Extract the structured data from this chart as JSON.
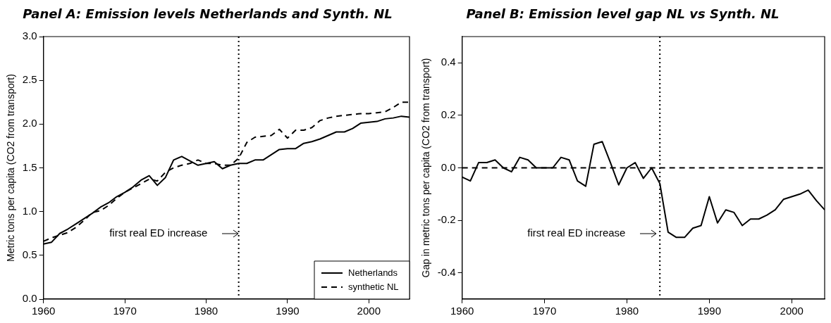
{
  "chart_data": [
    {
      "type": "line",
      "title": "Panel A: Emission levels Netherlands and Synth. NL",
      "ylabel": "Metric tons per capita (CO2 from transport)",
      "x": [
        1960,
        1961,
        1962,
        1963,
        1964,
        1965,
        1966,
        1967,
        1968,
        1969,
        1970,
        1971,
        1972,
        1973,
        1974,
        1975,
        1976,
        1977,
        1978,
        1979,
        1980,
        1981,
        1982,
        1983,
        1984,
        1985,
        1986,
        1987,
        1988,
        1989,
        1990,
        1991,
        1992,
        1993,
        1994,
        1995,
        1996,
        1997,
        1998,
        1999,
        2000,
        2001,
        2002,
        2003,
        2004,
        2005
      ],
      "series": [
        {
          "name": "Netherlands",
          "color": "#000000",
          "line_style": "solid",
          "values": [
            0.63,
            0.65,
            0.75,
            0.8,
            0.86,
            0.92,
            0.98,
            1.05,
            1.1,
            1.17,
            1.22,
            1.28,
            1.36,
            1.41,
            1.3,
            1.39,
            1.59,
            1.63,
            1.58,
            1.53,
            1.55,
            1.57,
            1.49,
            1.53,
            1.55,
            1.55,
            1.59,
            1.59,
            1.65,
            1.71,
            1.72,
            1.72,
            1.78,
            1.8,
            1.83,
            1.87,
            1.91,
            1.91,
            1.95,
            2.01,
            2.02,
            2.03,
            2.06,
            2.07,
            2.09,
            2.08
          ]
        },
        {
          "name": "synthetic NL",
          "color": "#000000",
          "line_style": "dashed",
          "values": [
            0.66,
            0.7,
            0.73,
            0.76,
            0.82,
            0.9,
            0.99,
            1.01,
            1.07,
            1.15,
            1.22,
            1.27,
            1.32,
            1.37,
            1.35,
            1.45,
            1.5,
            1.53,
            1.55,
            1.59,
            1.55,
            1.55,
            1.53,
            1.53,
            1.61,
            1.79,
            1.85,
            1.86,
            1.87,
            1.94,
            1.84,
            1.93,
            1.93,
            1.96,
            2.04,
            2.07,
            2.09,
            2.1,
            2.11,
            2.12,
            2.12,
            2.13,
            2.14,
            2.19,
            2.25,
            2.25
          ]
        }
      ],
      "xlim": [
        1960,
        2005
      ],
      "xticks": [
        1960,
        1970,
        1980,
        1990,
        2000
      ],
      "ylim": [
        0,
        3
      ],
      "yticks": [
        {
          "value": 0,
          "label": "0.0"
        },
        0.5,
        {
          "value": 1,
          "label": "1.0"
        },
        1.5,
        {
          "value": 2,
          "label": "2.0"
        },
        2.5,
        {
          "value": 3,
          "label": "3.0"
        }
      ],
      "ref_lines": [
        {
          "axis": "x",
          "value": 1984,
          "color": "#000000",
          "line_style": "dotted"
        }
      ],
      "annotations": [
        "first real ED increase"
      ],
      "marker": "none",
      "grid": false,
      "legend": "bottom right"
    },
    {
      "type": "line",
      "title": "Panel B: Emission level gap NL vs Synth. NL",
      "ylabel": "Gap in metric tons per capita (CO2 from transport)",
      "x": [
        1960,
        1961,
        1962,
        1963,
        1964,
        1965,
        1966,
        1967,
        1968,
        1969,
        1970,
        1971,
        1972,
        1973,
        1974,
        1975,
        1976,
        1977,
        1978,
        1979,
        1980,
        1981,
        1982,
        1983,
        1984,
        1985,
        1986,
        1987,
        1988,
        1989,
        1990,
        1991,
        1992,
        1993,
        1994,
        1995,
        1996,
        1997,
        1998,
        1999,
        2000,
        2001,
        2002,
        2003,
        2004
      ],
      "series": [
        {
          "color": "#000000",
          "line_style": "solid",
          "values": [
            -0.035,
            -0.05,
            0.02,
            0.02,
            0.03,
            0.0,
            -0.015,
            0.04,
            0.03,
            0.0,
            0.0,
            0.0,
            0.04,
            0.03,
            -0.05,
            -0.07,
            0.09,
            0.1,
            0.02,
            -0.065,
            0.0,
            0.02,
            -0.04,
            0.0,
            -0.06,
            -0.245,
            -0.265,
            -0.265,
            -0.23,
            -0.22,
            -0.11,
            -0.21,
            -0.16,
            -0.17,
            -0.22,
            -0.195,
            -0.195,
            -0.18,
            -0.16,
            -0.12,
            -0.11,
            -0.1,
            -0.085,
            -0.125,
            -0.16
          ]
        }
      ],
      "xlim": [
        1960,
        2004
      ],
      "xticks": [
        1960,
        1970,
        1980,
        1990,
        2000
      ],
      "ylim": [
        -0.5,
        0.5
      ],
      "yticks": [
        -0.4,
        -0.2,
        {
          "value": 0,
          "label": "0.0"
        },
        0.2,
        0.4
      ],
      "ref_lines": [
        {
          "axis": "y",
          "value": 0,
          "color": "#000000",
          "line_style": "dashed"
        },
        {
          "axis": "x",
          "value": 1984,
          "color": "#000000",
          "line_style": "dotted"
        }
      ],
      "annotations": [
        "first real ED increase"
      ],
      "marker": "none",
      "grid": false
    }
  ]
}
